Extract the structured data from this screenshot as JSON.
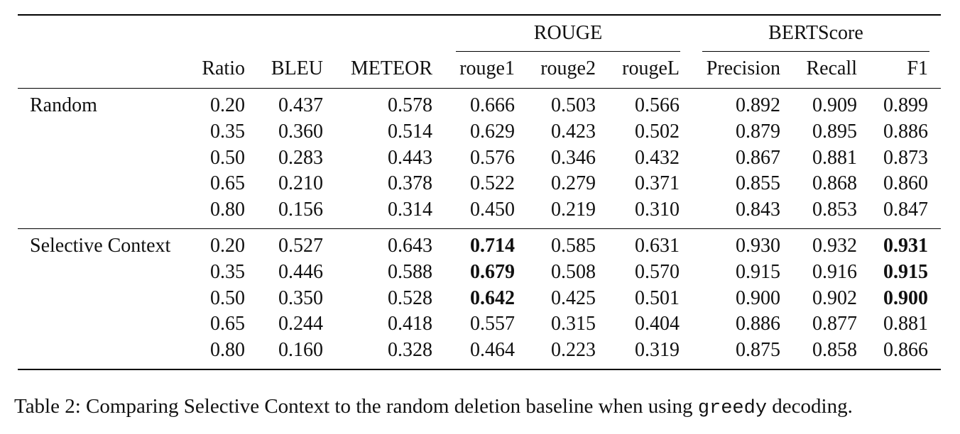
{
  "table": {
    "group_headers": {
      "rouge": "ROUGE",
      "bertscore": "BERTScore"
    },
    "columns": [
      "Ratio",
      "BLEU",
      "METEOR",
      "rouge1",
      "rouge2",
      "rougeL",
      "Precision",
      "Recall",
      "F1"
    ],
    "groups": [
      {
        "label": "Random",
        "rows": [
          [
            "0.20",
            "0.437",
            "0.578",
            "0.666",
            "0.503",
            "0.566",
            "0.892",
            "0.909",
            "0.899"
          ],
          [
            "0.35",
            "0.360",
            "0.514",
            "0.629",
            "0.423",
            "0.502",
            "0.879",
            "0.895",
            "0.886"
          ],
          [
            "0.50",
            "0.283",
            "0.443",
            "0.576",
            "0.346",
            "0.432",
            "0.867",
            "0.881",
            "0.873"
          ],
          [
            "0.65",
            "0.210",
            "0.378",
            "0.522",
            "0.279",
            "0.371",
            "0.855",
            "0.868",
            "0.860"
          ],
          [
            "0.80",
            "0.156",
            "0.314",
            "0.450",
            "0.219",
            "0.310",
            "0.843",
            "0.853",
            "0.847"
          ]
        ],
        "bold": []
      },
      {
        "label": "Selective Context",
        "rows": [
          [
            "0.20",
            "0.527",
            "0.643",
            "0.714",
            "0.585",
            "0.631",
            "0.930",
            "0.932",
            "0.931"
          ],
          [
            "0.35",
            "0.446",
            "0.588",
            "0.679",
            "0.508",
            "0.570",
            "0.915",
            "0.916",
            "0.915"
          ],
          [
            "0.50",
            "0.350",
            "0.528",
            "0.642",
            "0.425",
            "0.501",
            "0.900",
            "0.902",
            "0.900"
          ],
          [
            "0.65",
            "0.244",
            "0.418",
            "0.557",
            "0.315",
            "0.404",
            "0.886",
            "0.877",
            "0.881"
          ],
          [
            "0.80",
            "0.160",
            "0.328",
            "0.464",
            "0.223",
            "0.319",
            "0.875",
            "0.858",
            "0.866"
          ]
        ],
        "bold": [
          [
            0,
            3
          ],
          [
            0,
            8
          ],
          [
            1,
            3
          ],
          [
            1,
            8
          ],
          [
            2,
            3
          ],
          [
            2,
            8
          ]
        ]
      }
    ]
  },
  "caption": {
    "prefix": "Table 2: Comparing Selective Context to the random deletion baseline when using ",
    "code": "greedy",
    "suffix": " decoding."
  }
}
